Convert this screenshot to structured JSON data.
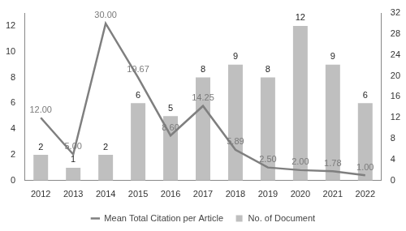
{
  "chart_data": {
    "type": "bar",
    "categories": [
      "2012",
      "2013",
      "2014",
      "2015",
      "2016",
      "2017",
      "2018",
      "2019",
      "2020",
      "2021",
      "2022"
    ],
    "series": [
      {
        "name": "No. of Document",
        "type": "bar",
        "color": "#bfbfbf",
        "values": [
          2,
          1,
          2,
          6,
          5,
          8,
          9,
          8,
          12,
          9,
          6
        ]
      },
      {
        "name": "Mean Total Citation per Article",
        "type": "line",
        "color": "#7f7f7f",
        "axis": "y2",
        "values": [
          12,
          5,
          30,
          19.67,
          8.6,
          14.25,
          5.89,
          2.5,
          2,
          1.78,
          1
        ],
        "value_labels": [
          "12.00",
          "5.00",
          "30.00",
          "19.67",
          "8.60",
          "14.25",
          "5.89",
          "2.50",
          "2.00",
          "1.78",
          "1.00"
        ]
      }
    ],
    "ylim": [
      0,
      13
    ],
    "yticks": [
      0,
      2,
      4,
      6,
      8,
      10,
      12
    ],
    "y2lim": [
      0,
      32
    ],
    "y2ticks": [
      0,
      4,
      8,
      12,
      16,
      20,
      24,
      28,
      32
    ],
    "grid": false,
    "legend": "bottom",
    "data_labels": true
  }
}
